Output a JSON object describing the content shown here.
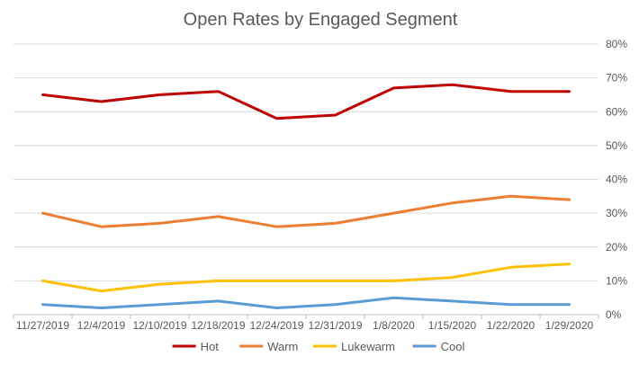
{
  "chart_data": {
    "type": "line",
    "title": "Open Rates by Engaged Segment",
    "xlabel": "",
    "ylabel": "",
    "categories": [
      "11/27/2019",
      "12/4/2019",
      "12/10/2019",
      "12/18/2019",
      "12/24/2019",
      "12/31/2019",
      "1/8/2020",
      "1/15/2020",
      "1/22/2020",
      "1/29/2020"
    ],
    "y_ticks": [
      "0%",
      "10%",
      "20%",
      "30%",
      "40%",
      "50%",
      "60%",
      "70%",
      "80%"
    ],
    "ylim": [
      0,
      80
    ],
    "y_axis_position": "right",
    "grid": true,
    "legend_position": "bottom",
    "series": [
      {
        "name": "Hot",
        "color": "#c00000",
        "values": [
          65,
          63,
          65,
          66,
          58,
          59,
          67,
          68,
          66,
          66
        ]
      },
      {
        "name": "Warm",
        "color": "#ed7d31",
        "values": [
          30,
          26,
          27,
          29,
          26,
          27,
          30,
          33,
          35,
          34
        ]
      },
      {
        "name": "Lukewarm",
        "color": "#ffc000",
        "values": [
          10,
          7,
          9,
          10,
          10,
          10,
          10,
          11,
          14,
          15
        ]
      },
      {
        "name": "Cool",
        "color": "#5b9bd5",
        "values": [
          3,
          2,
          3,
          4,
          2,
          3,
          5,
          4,
          3,
          3
        ]
      }
    ]
  }
}
